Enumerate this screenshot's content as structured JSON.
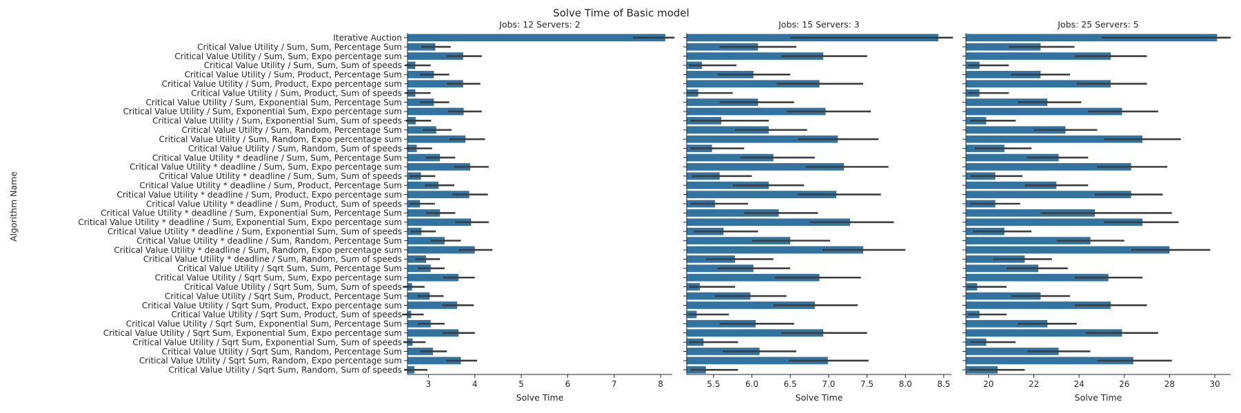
{
  "chart_data": {
    "type": "bar",
    "orientation": "horizontal",
    "title": "Solve Time of Basic model",
    "ylabel": "Algorithm Name",
    "xlabel": "Solve Time",
    "bar_color": "#3274a1",
    "errbar_color": "#3d3d3d",
    "categories": [
      "Iterative Auction",
      "Critical Value Utility / Sum, Sum, Percentage Sum",
      "Critical Value Utility / Sum, Sum, Expo percentage sum",
      "Critical Value Utility / Sum, Sum, Sum of speeds",
      "Critical Value Utility / Sum, Product, Percentage Sum",
      "Critical Value Utility / Sum, Product, Expo percentage sum",
      "Critical Value Utility / Sum, Product, Sum of speeds",
      "Critical Value Utility / Sum, Exponential Sum, Percentage Sum",
      "Critical Value Utility / Sum, Exponential Sum, Expo percentage sum",
      "Critical Value Utility / Sum, Exponential Sum, Sum of speeds",
      "Critical Value Utility / Sum, Random, Percentage Sum",
      "Critical Value Utility / Sum, Random, Expo percentage sum",
      "Critical Value Utility / Sum, Random, Sum of speeds",
      "Critical Value Utility * deadline / Sum, Sum, Percentage Sum",
      "Critical Value Utility * deadline / Sum, Sum, Expo percentage sum",
      "Critical Value Utility * deadline / Sum, Sum, Sum of speeds",
      "Critical Value Utility * deadline / Sum, Product, Percentage Sum",
      "Critical Value Utility * deadline / Sum, Product, Expo percentage sum",
      "Critical Value Utility * deadline / Sum, Product, Sum of speeds",
      "Critical Value Utility * deadline / Sum, Exponential Sum, Percentage Sum",
      "Critical Value Utility * deadline / Sum, Exponential Sum, Expo percentage sum",
      "Critical Value Utility * deadline / Sum, Exponential Sum, Sum of speeds",
      "Critical Value Utility * deadline / Sum, Random, Percentage Sum",
      "Critical Value Utility * deadline / Sum, Random, Expo percentage sum",
      "Critical Value Utility * deadline / Sum, Random, Sum of speeds",
      "Critical Value Utility / Sqrt Sum, Sum, Percentage Sum",
      "Critical Value Utility / Sqrt Sum, Sum, Expo percentage sum",
      "Critical Value Utility / Sqrt Sum, Sum, Sum of speeds",
      "Critical Value Utility / Sqrt Sum, Product, Percentage Sum",
      "Critical Value Utility / Sqrt Sum, Product, Expo percentage sum",
      "Critical Value Utility / Sqrt Sum, Product, Sum of speeds",
      "Critical Value Utility / Sqrt Sum, Exponential Sum, Percentage Sum",
      "Critical Value Utility / Sqrt Sum, Exponential Sum, Expo percentage sum",
      "Critical Value Utility / Sqrt Sum, Exponential Sum, Sum of speeds",
      "Critical Value Utility / Sqrt Sum, Random, Percentage Sum",
      "Critical Value Utility / Sqrt Sum, Random, Expo percentage sum",
      "Critical Value Utility / Sqrt Sum, Random, Sum of speeds"
    ],
    "panels": [
      {
        "title": "Jobs: 12 Servers: 2",
        "xlim": [
          2.55,
          8.25
        ],
        "xticks": [
          3,
          4,
          5,
          6,
          7,
          8
        ],
        "xtick_labels": [
          "3",
          "4",
          "5",
          "6",
          "7",
          "8"
        ],
        "values": [
          8.1,
          3.15,
          3.75,
          2.72,
          3.12,
          3.75,
          2.72,
          3.12,
          3.76,
          2.73,
          3.17,
          3.8,
          2.75,
          3.25,
          3.9,
          2.84,
          3.22,
          3.88,
          2.82,
          3.25,
          3.92,
          2.85,
          3.35,
          4.0,
          2.95,
          3.05,
          3.65,
          2.65,
          3.03,
          3.62,
          2.63,
          3.05,
          3.65,
          2.66,
          3.1,
          3.7,
          2.7
        ],
        "err_low": [
          7.4,
          2.85,
          3.4,
          2.5,
          2.82,
          3.4,
          2.5,
          2.82,
          3.42,
          2.52,
          2.88,
          3.45,
          2.53,
          2.95,
          3.55,
          2.6,
          2.92,
          3.52,
          2.6,
          2.95,
          3.58,
          2.62,
          3.05,
          3.65,
          2.72,
          2.78,
          3.32,
          2.45,
          2.76,
          3.3,
          2.43,
          2.78,
          3.3,
          2.46,
          2.82,
          3.38,
          2.48
        ],
        "err_high": [
          8.3,
          3.48,
          4.15,
          3.05,
          3.45,
          4.12,
          3.05,
          3.45,
          4.15,
          3.06,
          3.5,
          4.22,
          3.08,
          3.58,
          4.3,
          3.15,
          3.56,
          4.28,
          3.14,
          3.58,
          4.3,
          3.16,
          3.7,
          4.38,
          3.25,
          3.35,
          4.0,
          2.92,
          3.33,
          3.98,
          2.9,
          3.35,
          4.0,
          2.94,
          3.4,
          4.05,
          2.98
        ]
      },
      {
        "title": "Jobs: 15 Servers: 3",
        "xlim": [
          5.15,
          8.6
        ],
        "xticks": [
          5.5,
          6.0,
          6.5,
          7.0,
          7.5,
          8.0,
          8.5
        ],
        "xtick_labels": [
          "5.5",
          "6.0",
          "6.5",
          "7.0",
          "7.5",
          "8.0",
          "8.5"
        ],
        "values": [
          8.43,
          6.08,
          6.93,
          5.35,
          6.02,
          6.88,
          5.3,
          6.08,
          6.96,
          5.6,
          6.22,
          7.12,
          5.48,
          6.28,
          7.2,
          5.58,
          6.22,
          7.1,
          5.52,
          6.35,
          7.28,
          5.63,
          6.5,
          7.45,
          5.78,
          6.02,
          6.88,
          5.32,
          5.98,
          6.82,
          5.28,
          6.05,
          6.93,
          5.37,
          6.1,
          6.99,
          5.4
        ],
        "err_low": [
          6.5,
          5.58,
          6.38,
          5.18,
          5.55,
          6.32,
          5.16,
          5.58,
          6.45,
          5.2,
          5.78,
          6.6,
          5.2,
          5.85,
          6.7,
          5.22,
          5.75,
          6.6,
          5.2,
          5.9,
          6.75,
          5.24,
          6.0,
          6.92,
          5.4,
          5.55,
          6.3,
          5.18,
          5.52,
          6.28,
          5.17,
          5.58,
          6.38,
          5.18,
          5.62,
          6.48,
          5.2
        ],
        "err_high": [
          8.62,
          6.58,
          7.5,
          5.8,
          6.5,
          7.45,
          5.75,
          6.55,
          7.55,
          6.22,
          6.72,
          7.65,
          5.9,
          6.82,
          7.78,
          6.0,
          6.68,
          7.68,
          5.95,
          6.86,
          7.85,
          6.08,
          7.02,
          8.0,
          6.28,
          6.5,
          7.42,
          5.78,
          6.45,
          7.38,
          5.7,
          6.55,
          7.5,
          5.82,
          6.58,
          7.52,
          5.82
        ]
      },
      {
        "title": "Jobs: 25 Servers: 5",
        "xlim": [
          19.0,
          30.7
        ],
        "xticks": [
          20,
          22,
          24,
          26,
          28,
          30
        ],
        "xtick_labels": [
          "20",
          "22",
          "24",
          "26",
          "28",
          "30"
        ],
        "values": [
          30.1,
          22.3,
          25.4,
          19.6,
          22.3,
          25.4,
          19.6,
          22.6,
          25.9,
          19.9,
          23.4,
          26.8,
          20.7,
          23.1,
          26.3,
          20.3,
          23.0,
          26.3,
          20.3,
          24.7,
          26.8,
          20.7,
          24.5,
          28.0,
          21.6,
          22.2,
          25.3,
          19.5,
          22.3,
          25.4,
          19.6,
          22.6,
          25.9,
          19.9,
          23.1,
          26.4,
          20.4
        ],
        "err_low": [
          25.0,
          20.9,
          23.8,
          19.1,
          21.0,
          23.9,
          19.1,
          21.3,
          24.4,
          19.2,
          22.0,
          25.1,
          19.4,
          21.7,
          24.8,
          19.2,
          21.6,
          24.7,
          19.2,
          22.3,
          25.1,
          19.3,
          23.0,
          26.3,
          20.2,
          20.8,
          23.8,
          19.05,
          21.0,
          23.8,
          19.1,
          21.3,
          24.3,
          19.2,
          21.7,
          24.8,
          19.1
        ],
        "err_high": [
          30.7,
          23.8,
          27.0,
          20.9,
          23.6,
          27.0,
          20.9,
          24.1,
          27.5,
          21.2,
          24.8,
          28.5,
          21.9,
          24.4,
          27.9,
          21.5,
          24.4,
          27.7,
          21.4,
          28.1,
          28.4,
          21.9,
          26.0,
          29.8,
          22.8,
          23.5,
          26.8,
          20.8,
          23.6,
          27.0,
          20.8,
          23.9,
          27.5,
          21.2,
          24.5,
          28.1,
          21.6
        ]
      }
    ]
  }
}
